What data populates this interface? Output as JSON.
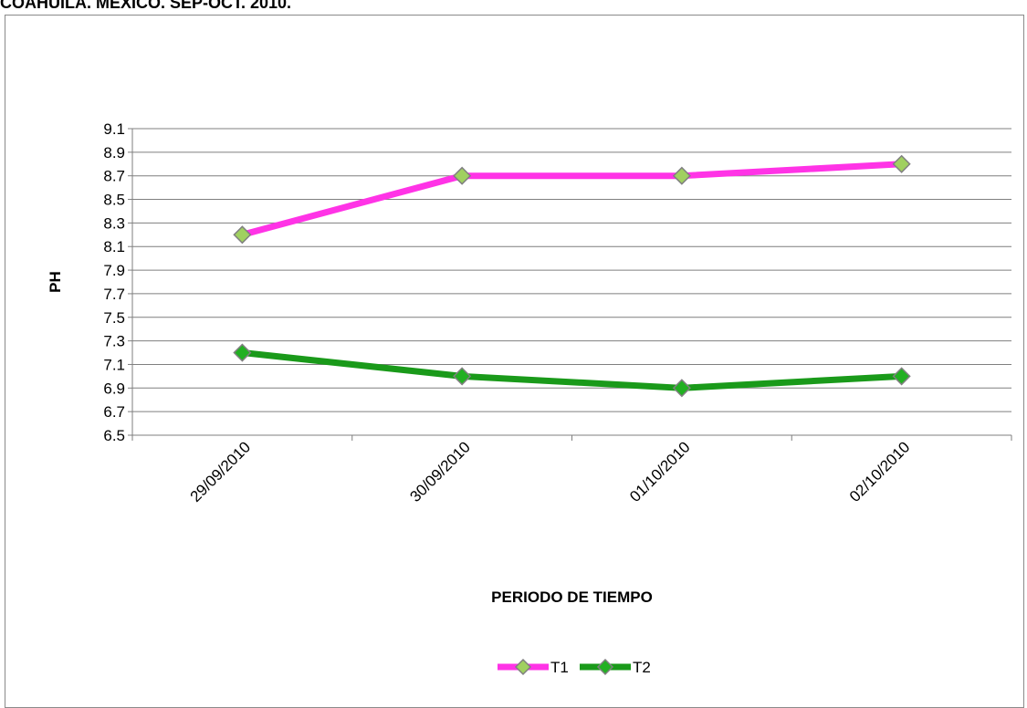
{
  "title": "COAHUILA. MEXICO. SEP-OCT. 2010.",
  "colors": {
    "T1": "#ff33e6",
    "T2": "#1a9a1a",
    "marker_fill_T1": "#a0d060",
    "marker_fill_T2": "#22b022",
    "marker_stroke": "#808080",
    "grid": "#7f7f7f"
  },
  "chart_data": {
    "type": "line",
    "categories": [
      "29/09/2010",
      "30/09/2010",
      "01/10/2010",
      "02/10/2010"
    ],
    "series": [
      {
        "name": "T1",
        "values": [
          8.2,
          8.7,
          8.7,
          8.8
        ]
      },
      {
        "name": "T2",
        "values": [
          7.2,
          7.0,
          6.9,
          7.0
        ]
      }
    ],
    "xlabel": "PERIODO DE TIEMPO",
    "ylabel": "PH",
    "ylim": [
      6.5,
      9.1
    ],
    "yticks": [
      "6.5",
      "6.7",
      "6.9",
      "7.1",
      "7.3",
      "7.5",
      "7.7",
      "7.9",
      "8.1",
      "8.3",
      "8.5",
      "8.7",
      "8.9",
      "9.1"
    ],
    "grid": true,
    "legend": "bottom",
    "marker": "diamond"
  }
}
